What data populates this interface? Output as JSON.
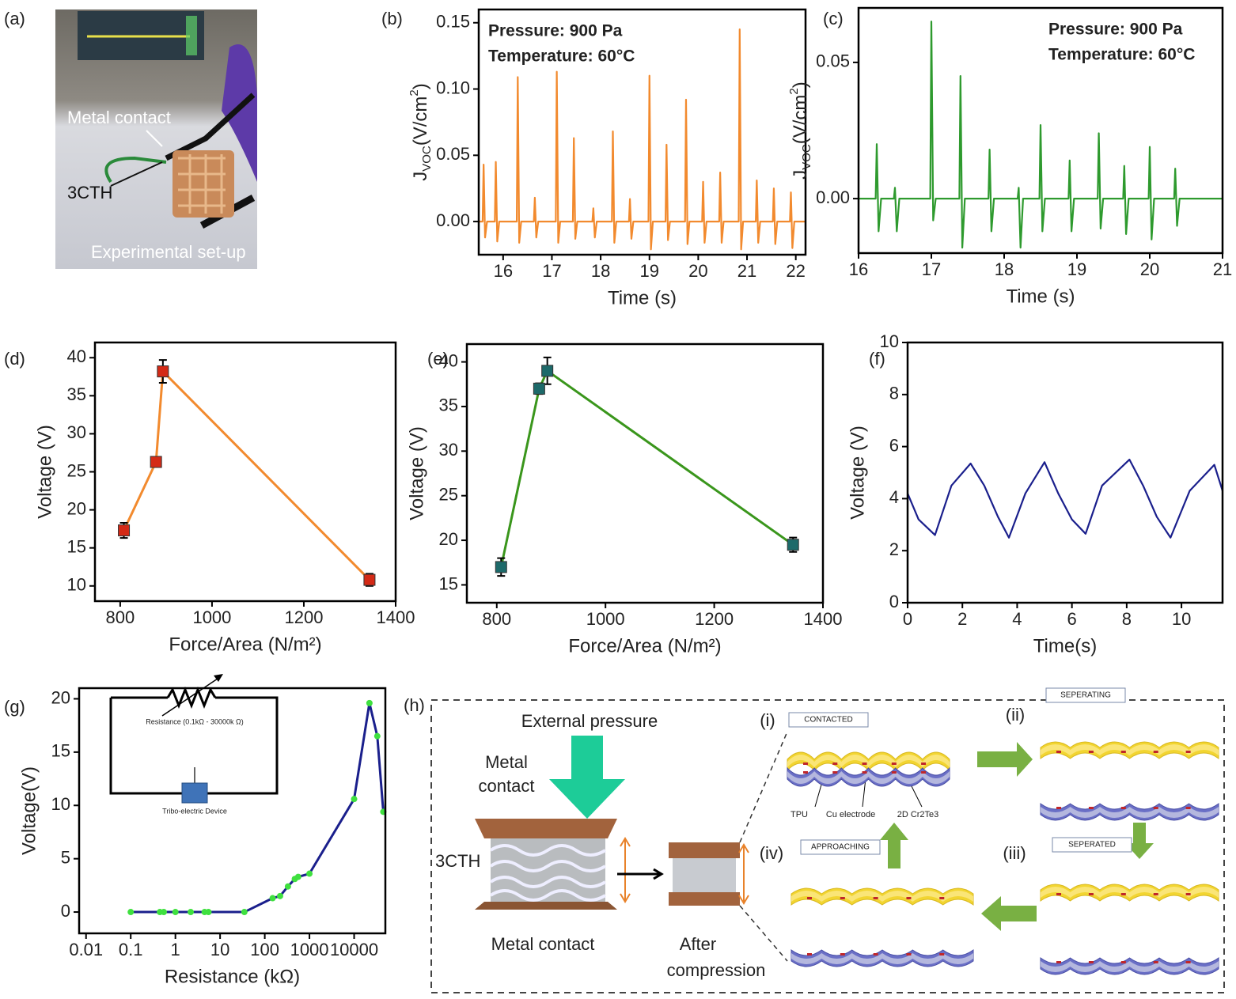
{
  "panel_labels": [
    "(a)",
    "(b)",
    "(c)",
    "(d)",
    "(e)",
    "(f)",
    "(g)",
    "(h)"
  ],
  "photo": {
    "labels": [
      "Metal contact",
      "3CTH",
      "Experimental set-up"
    ]
  },
  "circuit": {
    "resistor": "Resistance (0.1kΩ - 30000k Ω)",
    "device": "Tribo-electric Device"
  },
  "schematic": {
    "external_pressure": "External pressure",
    "metal_contact_top": [
      "Metal",
      "contact"
    ],
    "cth": "3CTH",
    "metal_contact_bottom": "Metal contact",
    "after_compression": [
      "After",
      "compression"
    ],
    "stages": [
      {
        "numeral": "(i)",
        "name": "CONTACTED"
      },
      {
        "numeral": "(ii)",
        "name": "SEPERATING"
      },
      {
        "numeral": "(iii)",
        "name": "SEPERATED"
      },
      {
        "numeral": "(iv)",
        "name": "APPROACHING"
      }
    ],
    "layer_labels": [
      "TPU",
      "Cu electrode",
      "2D Cr2Te3"
    ]
  },
  "chart_data": [
    {
      "type": "line",
      "annotations": [
        "Pressure: 900 Pa",
        "Temperature: 60°C"
      ],
      "ylabel": {
        "text": "J",
        "sub": "VOC",
        "unit": "(V/cm",
        "sup": "2",
        "end": ")"
      },
      "xlabel": "Time (s)",
      "xlim": [
        15.5,
        22.2
      ],
      "xticks": [
        16,
        17,
        18,
        19,
        20,
        21,
        22
      ],
      "ylim": [
        -0.025,
        0.16
      ],
      "yticks": [
        {
          "value": 0,
          "label": "0.00"
        },
        0.05,
        {
          "value": 0.1,
          "label": "0.10"
        },
        0.15
      ],
      "x": [
        15.5,
        15.58,
        15.6,
        15.63,
        15.67,
        15.83,
        15.85,
        15.88,
        15.92,
        16.28,
        16.3,
        16.33,
        16.37,
        16.63,
        16.65,
        16.68,
        16.72,
        17.08,
        17.1,
        17.13,
        17.17,
        17.43,
        17.45,
        17.48,
        17.52,
        17.83,
        17.85,
        17.88,
        17.92,
        18.23,
        18.25,
        18.28,
        18.32,
        18.58,
        18.6,
        18.63,
        18.67,
        18.98,
        19.0,
        19.03,
        19.07,
        19.33,
        19.35,
        19.38,
        19.42,
        19.73,
        19.75,
        19.78,
        19.82,
        20.08,
        20.1,
        20.13,
        20.17,
        20.43,
        20.45,
        20.48,
        20.52,
        20.83,
        20.85,
        20.88,
        20.92,
        21.18,
        21.2,
        21.23,
        21.27,
        21.53,
        21.55,
        21.58,
        21.62,
        21.88,
        21.9,
        21.93,
        21.97,
        22.2
      ],
      "series": [
        {
          "color": "#f28a2e",
          "values": [
            0,
            0,
            0.043,
            -0.012,
            0,
            0,
            0.045,
            -0.015,
            0,
            0,
            0.109,
            -0.016,
            0,
            0,
            0.018,
            -0.012,
            0,
            0,
            0.113,
            -0.016,
            0,
            0,
            0.063,
            -0.013,
            0,
            0,
            0.01,
            -0.012,
            0,
            0,
            0.068,
            -0.016,
            0,
            0,
            0.017,
            -0.013,
            0,
            0,
            0.11,
            -0.021,
            0,
            0,
            0.058,
            -0.014,
            0,
            0,
            0.092,
            -0.017,
            0,
            0,
            0.03,
            -0.016,
            0,
            0,
            0.037,
            -0.016,
            0,
            0,
            0.145,
            -0.021,
            0,
            0,
            0.031,
            -0.016,
            0,
            0,
            0.025,
            -0.017,
            0,
            0,
            0.022,
            -0.02,
            0,
            0
          ]
        }
      ]
    },
    {
      "type": "line",
      "annotations": [
        "Pressure: 900 Pa",
        "Temperature: 60°C"
      ],
      "ylabel": {
        "text": "J",
        "sub": "VOC",
        "unit": "(V/cm",
        "sup": "2",
        "end": ")"
      },
      "xlabel": "Time (s)",
      "xlim": [
        16,
        21
      ],
      "xticks": [
        16,
        17,
        18,
        19,
        20,
        21
      ],
      "ylim": [
        -0.02,
        0.07
      ],
      "yticks": [
        {
          "value": 0,
          "label": "0.00"
        },
        0.05
      ],
      "x": [
        16,
        16.235,
        16.25,
        16.275,
        16.31,
        16.485,
        16.5,
        16.525,
        16.56,
        16.985,
        17.0,
        17.025,
        17.06,
        17.385,
        17.4,
        17.425,
        17.46,
        17.785,
        17.8,
        17.825,
        17.86,
        18.185,
        18.2,
        18.225,
        18.26,
        18.485,
        18.5,
        18.525,
        18.56,
        18.885,
        18.9,
        18.925,
        18.96,
        19.285,
        19.3,
        19.325,
        19.36,
        19.635,
        19.65,
        19.675,
        19.71,
        19.985,
        20.0,
        20.025,
        20.06,
        20.335,
        20.35,
        20.375,
        20.41,
        21
      ],
      "series": [
        {
          "color": "#2e9a2e",
          "values": [
            0,
            0,
            0.02,
            -0.012,
            0,
            0,
            0.004,
            -0.012,
            0,
            0,
            0.065,
            -0.008,
            0,
            0,
            0.045,
            -0.018,
            0,
            0,
            0.018,
            -0.012,
            0,
            0,
            0.004,
            -0.018,
            0,
            0,
            0.027,
            -0.012,
            0,
            0,
            0.014,
            -0.012,
            0,
            0,
            0.024,
            -0.011,
            0,
            0,
            0.012,
            -0.013,
            0,
            0,
            0.019,
            -0.015,
            0,
            0,
            0.011,
            -0.01,
            0,
            0
          ]
        }
      ]
    },
    {
      "type": "line",
      "ylabel": "Voltage (V)",
      "xlabel": "Force/Area (N/m²)",
      "xlim": [
        745,
        1400
      ],
      "xticks": [
        800,
        1000,
        1200,
        1400
      ],
      "ylim": [
        8,
        42
      ],
      "yticks": [
        10,
        15,
        20,
        25,
        30,
        35,
        40
      ],
      "x": [
        808,
        878,
        893,
        1343
      ],
      "series": [
        {
          "color": "#f28a2e",
          "marker_color": "#d42a16",
          "values": [
            17.3,
            26.3,
            38.2,
            10.8
          ],
          "errors": [
            1.0,
            0.6,
            1.5,
            0.8
          ]
        }
      ]
    },
    {
      "type": "line",
      "ylabel": "Voltage (V)",
      "xlabel": "Force/Area (N/m²)",
      "xlim": [
        745,
        1400
      ],
      "xticks": [
        800,
        1000,
        1200,
        1400
      ],
      "ylim": [
        13,
        42
      ],
      "yticks": [
        15,
        20,
        25,
        30,
        35,
        40
      ],
      "x": [
        808,
        878,
        893,
        1345
      ],
      "series": [
        {
          "color": "#3a961c",
          "marker_color": "#1d6a6a",
          "values": [
            17,
            37,
            39,
            19.5
          ],
          "errors": [
            1.0,
            0.6,
            1.5,
            0.8
          ]
        }
      ]
    },
    {
      "type": "line",
      "ylabel": "Voltage (V)",
      "xlabel": "Time(s)",
      "xlim": [
        0,
        11.5
      ],
      "xticks": [
        0,
        2,
        4,
        6,
        8,
        10
      ],
      "ylim": [
        0,
        10
      ],
      "yticks": [
        0,
        2,
        4,
        6,
        8,
        10
      ],
      "x": [
        0,
        0.4,
        1,
        1.6,
        2.3,
        2.8,
        3.3,
        3.7,
        4.3,
        5,
        5.5,
        6,
        6.5,
        7.1,
        8.1,
        8.6,
        9.1,
        9.6,
        10.3,
        11.2,
        11.5
      ],
      "series": [
        {
          "color": "#1a1f8c",
          "values": [
            4.2,
            3.2,
            2.6,
            4.5,
            5.35,
            4.5,
            3.3,
            2.5,
            4.2,
            5.4,
            4.2,
            3.2,
            2.65,
            4.5,
            5.5,
            4.5,
            3.3,
            2.5,
            4.3,
            5.3,
            4.3
          ]
        }
      ]
    },
    {
      "type": "line",
      "ylabel": "Voltage(V)",
      "xlabel": "Resistance (kΩ)",
      "xscale": "log",
      "xlim": [
        0.007,
        50000
      ],
      "xticks": [
        0.01,
        0.1,
        1,
        10,
        100,
        1000,
        10000
      ],
      "ylim": [
        -2,
        21
      ],
      "yticks": [
        0,
        5,
        10,
        15,
        20
      ],
      "x": [
        0.1,
        0.45,
        0.55,
        1,
        2.2,
        4.5,
        5.5,
        35,
        150,
        220,
        330,
        470,
        560,
        1000,
        10000,
        22000,
        33000,
        45000
      ],
      "series": [
        {
          "color": "#1a1f8c",
          "marker_color": "#3fe03f",
          "marker": "circle",
          "values": [
            0,
            0,
            0,
            0,
            0,
            0,
            0,
            0,
            1.3,
            1.5,
            2.4,
            3.1,
            3.3,
            3.6,
            10.6,
            19.6,
            16.5,
            9.4
          ]
        }
      ]
    }
  ]
}
